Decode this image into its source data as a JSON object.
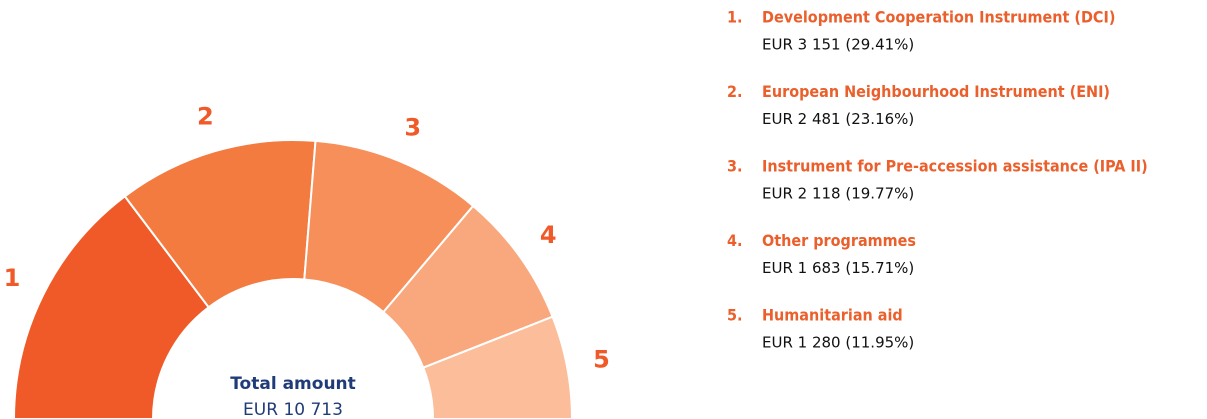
{
  "chart_data": {
    "type": "half-donut",
    "categories": [
      "Development Cooperation Instrument (DCI)",
      "European Neighbourhood Instrument (ENI)",
      "Instrument for Pre-accession assistance (IPA II)",
      "Other programmes",
      "Humanitarian aid"
    ],
    "segment_labels": [
      "1",
      "2",
      "3",
      "4",
      "5"
    ],
    "legend_markers": [
      "1.",
      "2.",
      "3.",
      "4.",
      "5."
    ],
    "values": [
      3151,
      2481,
      2118,
      1683,
      1280
    ],
    "value_labels": [
      "EUR 3 151 (29.41%)",
      "EUR 2 481 (23.16%)",
      "EUR 2 118 (19.77%)",
      "EUR 1 683 (15.71%)",
      "EUR 1 280 (11.95%)"
    ],
    "colors": [
      "#f05a28",
      "#f37b40",
      "#f68f59",
      "#f9a77c",
      "#fbbd9a"
    ],
    "center_title": "Total amount",
    "total": 10713,
    "total_label": "EUR 10 713"
  }
}
